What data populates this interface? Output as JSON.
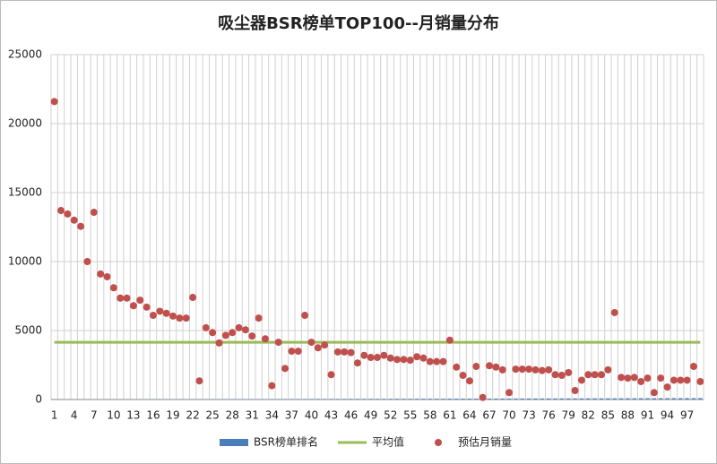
{
  "chart_data": {
    "type": "combo",
    "title": "吸尘器BSR榜单TOP100--月销量分布",
    "categories": [
      1,
      null,
      null,
      4,
      null,
      null,
      7,
      null,
      null,
      10,
      null,
      null,
      13,
      null,
      null,
      16,
      null,
      null,
      19,
      null,
      null,
      22,
      null,
      null,
      25,
      null,
      null,
      28,
      null,
      null,
      31,
      null,
      null,
      34,
      null,
      null,
      37,
      null,
      null,
      40,
      null,
      null,
      43,
      null,
      null,
      46,
      null,
      null,
      49,
      null,
      null,
      52,
      null,
      null,
      55,
      null,
      null,
      58,
      null,
      null,
      61,
      null,
      null,
      64,
      null,
      null,
      67,
      null,
      null,
      70,
      null,
      null,
      73,
      null,
      null,
      76,
      null,
      null,
      79,
      null,
      null,
      82,
      null,
      null,
      85,
      null,
      null,
      88,
      null,
      null,
      91,
      null,
      null,
      94,
      null,
      null,
      97,
      null,
      null
    ],
    "series": [
      {
        "name": "BSR榜单排名",
        "type": "bar",
        "color": "#4a7ebb",
        "values": [
          1,
          2,
          3,
          4,
          5,
          6,
          7,
          8,
          9,
          10,
          11,
          12,
          13,
          14,
          15,
          16,
          17,
          18,
          19,
          20,
          21,
          22,
          23,
          24,
          25,
          26,
          27,
          28,
          29,
          30,
          31,
          32,
          33,
          34,
          35,
          36,
          37,
          38,
          39,
          40,
          41,
          42,
          43,
          44,
          45,
          46,
          47,
          48,
          49,
          50,
          51,
          52,
          53,
          54,
          55,
          56,
          57,
          58,
          59,
          60,
          61,
          62,
          63,
          64,
          65,
          66,
          67,
          68,
          69,
          70,
          71,
          72,
          73,
          74,
          75,
          76,
          77,
          78,
          79,
          80,
          81,
          82,
          83,
          84,
          85,
          86,
          87,
          88,
          89,
          90,
          91,
          92,
          93,
          94,
          95,
          96,
          97,
          98,
          99
        ]
      },
      {
        "name": "平均值",
        "type": "line",
        "color": "#9bbb59",
        "values": [
          4150,
          4150,
          4150,
          4150,
          4150,
          4150,
          4150,
          4150,
          4150,
          4150,
          4150,
          4150,
          4150,
          4150,
          4150,
          4150,
          4150,
          4150,
          4150,
          4150,
          4150,
          4150,
          4150,
          4150,
          4150,
          4150,
          4150,
          4150,
          4150,
          4150,
          4150,
          4150,
          4150,
          4150,
          4150,
          4150,
          4150,
          4150,
          4150,
          4150,
          4150,
          4150,
          4150,
          4150,
          4150,
          4150,
          4150,
          4150,
          4150,
          4150,
          4150,
          4150,
          4150,
          4150,
          4150,
          4150,
          4150,
          4150,
          4150,
          4150,
          4150,
          4150,
          4150,
          4150,
          4150,
          4150,
          4150,
          4150,
          4150,
          4150,
          4150,
          4150,
          4150,
          4150,
          4150,
          4150,
          4150,
          4150,
          4150,
          4150,
          4150,
          4150,
          4150,
          4150,
          4150,
          4150,
          4150,
          4150,
          4150,
          4150,
          4150,
          4150,
          4150,
          4150,
          4150,
          4150,
          4150,
          4150,
          4150
        ]
      },
      {
        "name": "预估月销量",
        "type": "scatter",
        "color": "#c0504d",
        "values": [
          21600,
          13700,
          13450,
          13000,
          12550,
          10000,
          13570,
          9100,
          8900,
          8100,
          7350,
          7350,
          6800,
          7200,
          6700,
          6100,
          6400,
          6250,
          6050,
          5900,
          5900,
          7400,
          1350,
          5200,
          4850,
          4100,
          4650,
          4850,
          5200,
          5050,
          4600,
          5900,
          4400,
          1000,
          4150,
          2250,
          3500,
          3500,
          6100,
          4150,
          3750,
          3950,
          1800,
          3450,
          3450,
          3400,
          2650,
          3200,
          3050,
          3050,
          3200,
          3000,
          2900,
          2900,
          2850,
          3100,
          3000,
          2750,
          2750,
          2750,
          4300,
          2350,
          1750,
          1350,
          2400,
          150,
          2450,
          2350,
          2150,
          500,
          2200,
          2200,
          2200,
          2150,
          2100,
          2150,
          1800,
          1750,
          1950,
          650,
          1400,
          1800,
          1800,
          1800,
          2150,
          6300,
          1600,
          1550,
          1600,
          1300,
          1550,
          500,
          1550,
          900,
          1400,
          1400,
          1400,
          2400,
          1300
        ]
      }
    ],
    "ylim": [
      0,
      25000
    ],
    "yticks": [
      0,
      5000,
      10000,
      15000,
      20000,
      25000
    ],
    "grid": true,
    "legend": "bottom"
  }
}
